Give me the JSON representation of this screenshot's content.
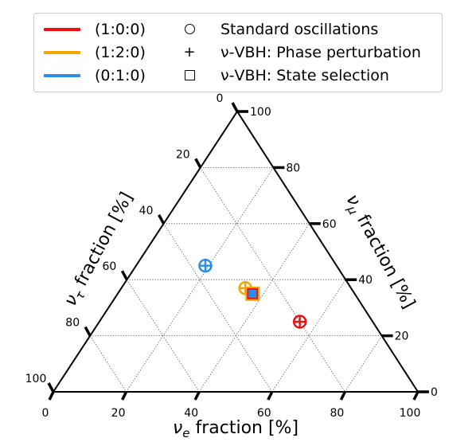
{
  "legend": {
    "ratios": [
      {
        "label": "(1:0:0)",
        "color": "#ee1111"
      },
      {
        "label": "(1:2:0)",
        "color": "#f5a500"
      },
      {
        "label": "(0:1:0)",
        "color": "#2a8fea"
      }
    ],
    "markers": [
      {
        "label": "Standard oscillations",
        "icon": "circle-marker"
      },
      {
        "label": "ν-VBH: Phase perturbation",
        "icon": "plus-marker"
      },
      {
        "label": "ν-VBH: State selection",
        "icon": "square-marker"
      }
    ]
  },
  "chart_data": {
    "type": "scatter",
    "plot_kind": "ternary",
    "axes": {
      "bottom": {
        "label_html": [
          "ν",
          "e",
          " fraction [%]"
        ],
        "range": [
          0,
          100
        ],
        "ticks": [
          "0",
          "20",
          "40",
          "60",
          "80",
          "100"
        ]
      },
      "right": {
        "label_html": [
          "ν",
          "μ",
          " fraction [%]"
        ],
        "range": [
          0,
          100
        ],
        "ticks": [
          "0",
          "20",
          "40",
          "60",
          "80",
          "100"
        ]
      },
      "left": {
        "label_html": [
          "ν",
          "τ",
          " fraction [%]"
        ],
        "range": [
          0,
          100
        ],
        "ticks": [
          "0",
          "20",
          "40",
          "60",
          "80",
          "100"
        ]
      }
    },
    "grid": true,
    "series": [
      {
        "name": "(1:0:0)",
        "color": "#ee1111",
        "points": [
          {
            "marker": "circle",
            "e": 55,
            "mu": 25,
            "tau": 20
          },
          {
            "marker": "plus",
            "e": 55,
            "mu": 25,
            "tau": 20
          }
        ]
      },
      {
        "name": "(1:2:0)",
        "color": "#f5a500",
        "points": [
          {
            "marker": "circle",
            "e": 34,
            "mu": 37,
            "tau": 29
          },
          {
            "marker": "plus",
            "e": 34,
            "mu": 37,
            "tau": 29
          },
          {
            "marker": "square",
            "e": 37,
            "mu": 35,
            "tau": 28
          }
        ]
      },
      {
        "name": "(0:1:0)",
        "color": "#2a8fea",
        "points": [
          {
            "marker": "circle",
            "e": 19,
            "mu": 45,
            "tau": 36
          },
          {
            "marker": "plus",
            "e": 19,
            "mu": 45,
            "tau": 36
          },
          {
            "marker": "square",
            "e": 37,
            "mu": 35,
            "tau": 28
          }
        ]
      }
    ]
  }
}
